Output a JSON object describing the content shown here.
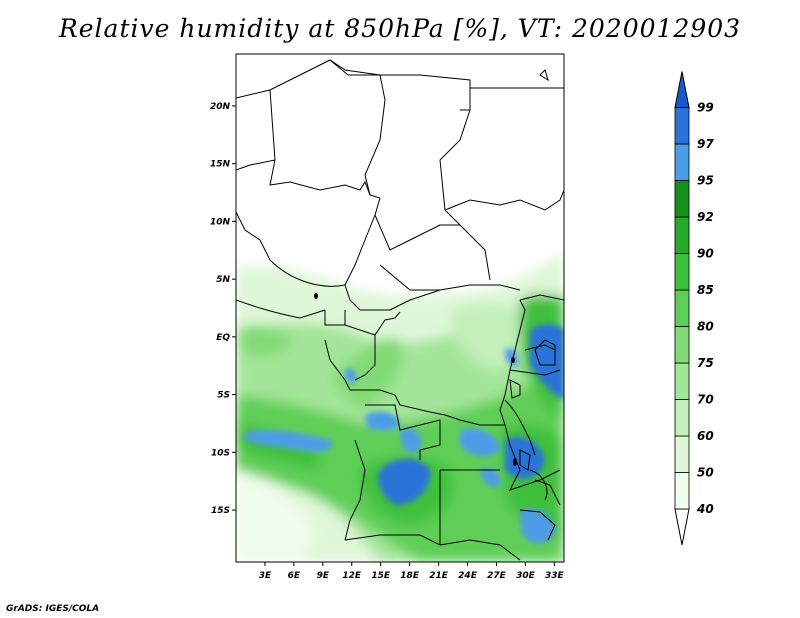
{
  "title": "Relative humidity at 850hPa [%], VT: 2020012903",
  "credit": "GrADS: IGES/COLA",
  "map": {
    "lat_range": [
      -19.5,
      24.5
    ],
    "lon_range": [
      0,
      34
    ],
    "lat_ticks": [
      {
        "value": 20,
        "label": "20N"
      },
      {
        "value": 15,
        "label": "15N"
      },
      {
        "value": 10,
        "label": "10N"
      },
      {
        "value": 5,
        "label": "5N"
      },
      {
        "value": 0,
        "label": "EQ"
      },
      {
        "value": -5,
        "label": "5S"
      },
      {
        "value": -10,
        "label": "10S"
      },
      {
        "value": -15,
        "label": "15S"
      }
    ],
    "lon_ticks": [
      {
        "value": 3,
        "label": "3E"
      },
      {
        "value": 6,
        "label": "6E"
      },
      {
        "value": 9,
        "label": "9E"
      },
      {
        "value": 12,
        "label": "12E"
      },
      {
        "value": 15,
        "label": "15E"
      },
      {
        "value": 18,
        "label": "18E"
      },
      {
        "value": 21,
        "label": "21E"
      },
      {
        "value": 24,
        "label": "24E"
      },
      {
        "value": 27,
        "label": "27E"
      },
      {
        "value": 30,
        "label": "30E"
      },
      {
        "value": 33,
        "label": "33E"
      }
    ]
  },
  "colorbar": {
    "levels": [
      {
        "label": "40",
        "color": "#f0fcec"
      },
      {
        "label": "50",
        "color": "#dff7d8"
      },
      {
        "label": "60",
        "color": "#c3efba"
      },
      {
        "label": "70",
        "color": "#a3e598"
      },
      {
        "label": "75",
        "color": "#82da76"
      },
      {
        "label": "80",
        "color": "#5fce56"
      },
      {
        "label": "85",
        "color": "#3fbf3c"
      },
      {
        "label": "90",
        "color": "#26a928"
      },
      {
        "label": "92",
        "color": "#148f18"
      },
      {
        "label": "95",
        "color": "#4d9ce8"
      },
      {
        "label": "97",
        "color": "#2c73d8"
      },
      {
        "label": "99",
        "color": "#1a5ac8"
      }
    ],
    "below_color": "#ffffff",
    "above_color": "#1a5ac8"
  }
}
